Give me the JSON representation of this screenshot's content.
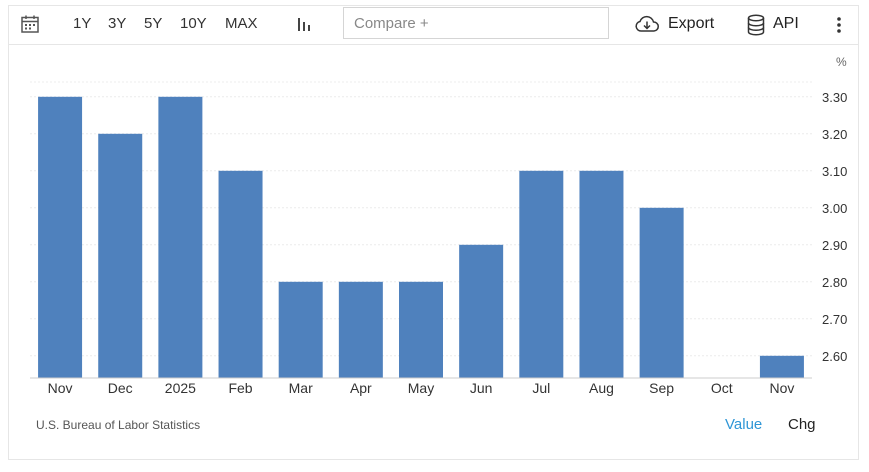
{
  "toolbar": {
    "range_buttons": [
      "1Y",
      "3Y",
      "5Y",
      "10Y",
      "MAX"
    ],
    "compare_placeholder": "Compare +",
    "export_label": "Export",
    "api_label": "API",
    "icons": [
      "calendar-icon",
      "bar-chart-icon",
      "cloud-download-icon",
      "database-icon",
      "more-vertical-icon"
    ]
  },
  "chart_data": {
    "type": "bar",
    "categories": [
      "Nov",
      "Dec",
      "2025",
      "Feb",
      "Mar",
      "Apr",
      "May",
      "Jun",
      "Jul",
      "Aug",
      "Sep",
      "Oct",
      "Nov"
    ],
    "values": [
      3.3,
      3.2,
      3.3,
      3.1,
      2.8,
      2.8,
      2.8,
      2.9,
      3.1,
      3.1,
      3.0,
      null,
      2.6
    ],
    "unit": "%",
    "y_ticks": [
      "3.30",
      "3.20",
      "3.10",
      "3.00",
      "2.90",
      "2.80",
      "2.70",
      "2.60"
    ],
    "ylim": [
      2.54,
      3.34
    ],
    "y_axis_side": "right",
    "grid": true,
    "bar_color": "#4f81bd"
  },
  "footer": {
    "source": "U.S. Bureau of Labor Statistics",
    "toggle_value": "Value",
    "toggle_chg": "Chg",
    "active_color": "#2f96d6"
  }
}
